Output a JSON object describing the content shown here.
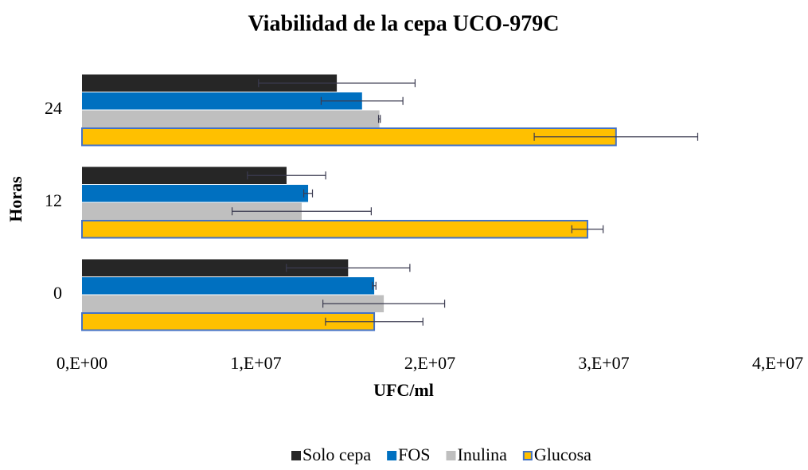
{
  "chart_data": {
    "type": "hbar",
    "title": "Viabilidad de la cepa UCO-979C",
    "xlabel": "UFC/ml",
    "ylabel": "Horas",
    "categories": [
      "0",
      "12",
      "24"
    ],
    "series": [
      {
        "name": "Solo cepa",
        "color": "#262626",
        "values": [
          15300000,
          11760000,
          14650000
        ],
        "errors": [
          3550000,
          2250000,
          4500000
        ]
      },
      {
        "name": "FOS",
        "color": "#0070c0",
        "values": [
          16800000,
          13000000,
          16100000
        ],
        "errors": [
          100000,
          250000,
          2350000
        ]
      },
      {
        "name": "Inulina",
        "color": "#bfbfbf",
        "values": [
          17350000,
          12630000,
          17100000
        ],
        "errors": [
          3500000,
          4000000,
          50000
        ]
      },
      {
        "name": "Glucosa",
        "color": "#ffc000",
        "edge": "#4472c4",
        "values": [
          16800000,
          29060000,
          30700000
        ],
        "errors": [
          2800000,
          900000,
          4700000
        ]
      }
    ],
    "xlim": [
      0,
      40000000
    ],
    "xticks": [
      {
        "value": 0,
        "label": "0,E+00"
      },
      {
        "value": 10000000,
        "label": "1,E+07"
      },
      {
        "value": 20000000,
        "label": "2,E+07"
      },
      {
        "value": 30000000,
        "label": "3,E+07"
      },
      {
        "value": 40000000,
        "label": "4,E+07"
      }
    ],
    "grid": false
  }
}
